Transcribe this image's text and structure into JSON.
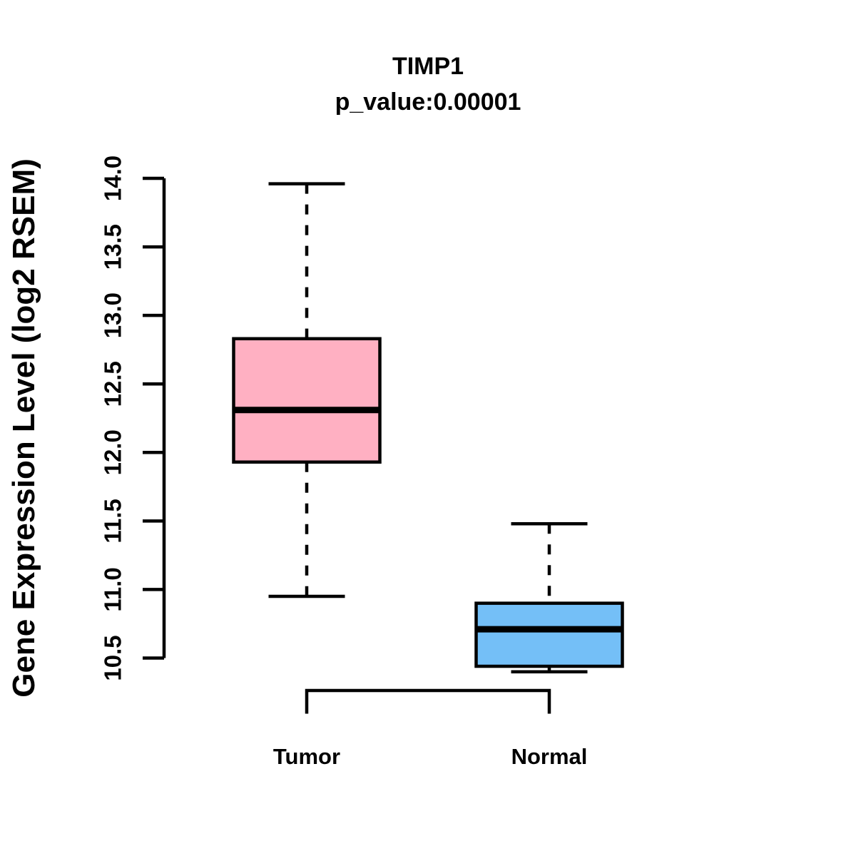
{
  "title": {
    "line1": "TIMP1",
    "line2": "p_value:0.00001"
  },
  "chart_data": {
    "type": "boxplot",
    "title": "TIMP1",
    "subtitle": "p_value:0.00001",
    "ylabel": "Gene Expression Level (log2 RSEM)",
    "xlabel": "",
    "categories": [
      "Tumor",
      "Normal"
    ],
    "series": [
      {
        "name": "Tumor",
        "color": "#FFB0C2",
        "whisker_low": 10.95,
        "q1": 11.93,
        "median": 12.31,
        "q3": 12.83,
        "whisker_high": 13.96
      },
      {
        "name": "Normal",
        "color": "#74BFF7",
        "whisker_low": 10.4,
        "q1": 10.44,
        "median": 10.71,
        "q3": 10.9,
        "whisker_high": 11.48
      }
    ],
    "ylim": [
      10.5,
      14.0
    ],
    "yticks": [
      "10.5",
      "11.0",
      "11.5",
      "12.0",
      "12.5",
      "13.0",
      "13.5",
      "14.0"
    ],
    "grid": "off",
    "legend": "none",
    "comparison_bracket": [
      "Tumor",
      "Normal"
    ],
    "stroke_color": "#000000"
  }
}
